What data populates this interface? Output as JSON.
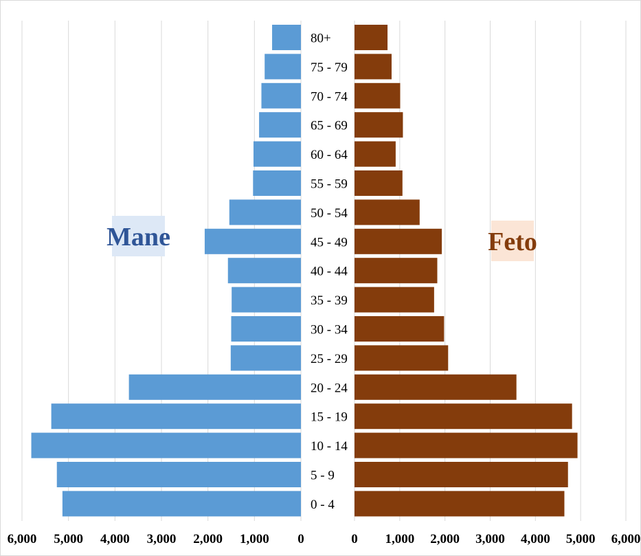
{
  "chart_data": {
    "type": "bar",
    "orientation": "horizontal-population-pyramid",
    "categories": [
      "80+",
      "75 - 79",
      "70 - 74",
      "65 - 69",
      "60 - 64",
      "55 - 59",
      "50 - 54",
      "45 - 49",
      "40 - 44",
      "35 - 39",
      "30 - 34",
      "25 - 29",
      "20 - 24",
      "15 - 19",
      "10 - 14",
      "5 - 9",
      "0 - 4"
    ],
    "series": [
      {
        "name": "Mane",
        "color": "#5b9bd5",
        "label_bg": "#dde8f6",
        "label_color": "#2f5597",
        "values": [
          620,
          780,
          850,
          900,
          1020,
          1030,
          1540,
          2070,
          1570,
          1490,
          1500,
          1510,
          3700,
          5370,
          5800,
          5250,
          5130
        ]
      },
      {
        "name": "Feto",
        "color": "#843c0c",
        "label_bg": "#fbe5d6",
        "label_color": "#843c0c",
        "values": [
          730,
          820,
          1010,
          1070,
          910,
          1060,
          1440,
          1930,
          1830,
          1760,
          1980,
          2070,
          3580,
          4810,
          4930,
          4720,
          4640
        ]
      }
    ],
    "left_ticks": [
      "6,000",
      "5,000",
      "4,000",
      "3,000",
      "2,000",
      "1,000",
      "0"
    ],
    "right_ticks": [
      "0",
      "1,000",
      "2,000",
      "3,000",
      "4,000",
      "5,000",
      "6,000"
    ],
    "xlim": [
      0,
      6000
    ],
    "grid": true
  }
}
